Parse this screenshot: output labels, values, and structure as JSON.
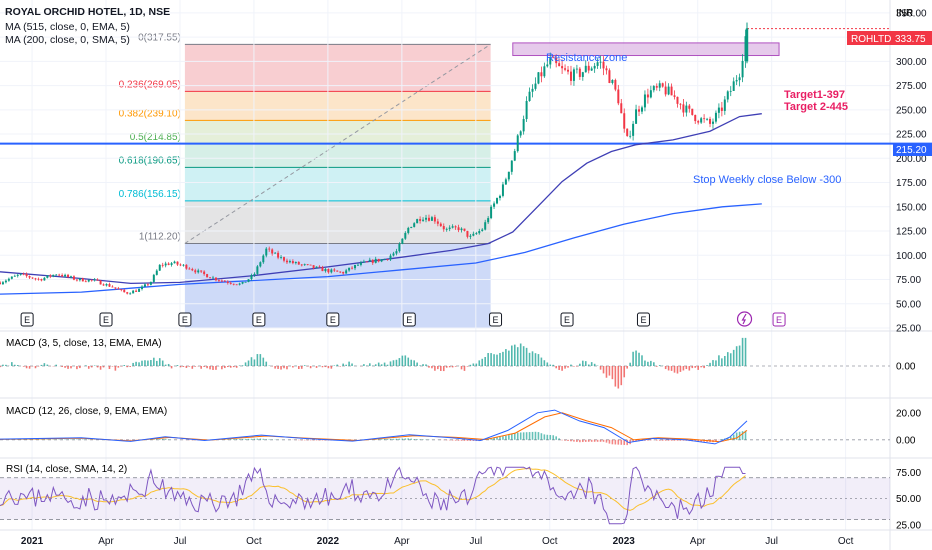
{
  "header": {
    "title": "ROYAL ORCHID HOTEL, 1D, NSE",
    "ma1": "MA (515, close, 0, EMA, 5)",
    "ma2": "MA (200, close, 0, SMA, 5)",
    "currency": "INR"
  },
  "price_tag": {
    "symbol": "ROHLTD",
    "value": "333.75",
    "color": "#f23645"
  },
  "hline_tag": {
    "value": "215.20",
    "color": "#2962ff"
  },
  "annotations": {
    "resistance": "Resistance zone",
    "target1": "Target1-397",
    "target2": "Target 2-445",
    "stop": "Stop Weekly close Below -300"
  },
  "panels": {
    "macd_fast": "MACD (3, 5, close, 13, EMA, EMA)",
    "macd_slow": "MACD (12, 26, close, 9, EMA, EMA)",
    "rsi": "RSI (14, close, SMA, 14, 2)"
  },
  "earnings_marker": "E",
  "chart_data": {
    "type": "candlestick",
    "main_y_ticks": [
      25,
      50,
      75,
      100,
      125,
      150,
      175,
      200,
      225,
      250,
      275,
      300,
      325,
      350
    ],
    "main_ylim": [
      25,
      355
    ],
    "x_labels": [
      "2021",
      "Apr",
      "Jul",
      "Oct",
      "2022",
      "Apr",
      "Jul",
      "Oct",
      "2023",
      "Apr",
      "Jul",
      "Oct"
    ],
    "x_label_months": [
      0,
      3,
      6,
      9,
      12,
      15,
      18,
      21,
      24,
      27,
      30,
      33
    ],
    "x_range_months": [
      -1.3,
      34.8
    ],
    "fibonacci": {
      "start_month": 6.2,
      "end_month": 18.6,
      "levels": [
        {
          "label": "0(317.55)",
          "ratio": 0,
          "price": 317.55,
          "line": "#787b86",
          "fill": "#f7c6c9",
          "text": "#787b86"
        },
        {
          "label": "0.236(269.05)",
          "ratio": 0.236,
          "price": 269.05,
          "line": "#f23645",
          "fill": "#fbe0c0",
          "text": "#f23645"
        },
        {
          "label": "0.382(239.10)",
          "ratio": 0.382,
          "price": 239.1,
          "line": "#ff9800",
          "fill": "#e0ecd2",
          "text": "#ff9800"
        },
        {
          "label": "0.5(214.85)",
          "ratio": 0.5,
          "price": 214.85,
          "line": "#4caf50",
          "fill": "#cfece3",
          "text": "#4caf50"
        },
        {
          "label": "0.618(190.65)",
          "ratio": 0.618,
          "price": 190.65,
          "line": "#089981",
          "fill": "#c7eff2",
          "text": "#089981"
        },
        {
          "label": "0.786(156.15)",
          "ratio": 0.786,
          "price": 156.15,
          "line": "#00bcd4",
          "fill": "#dfdfe1",
          "text": "#00bcd4"
        },
        {
          "label": "1(112.20)",
          "ratio": 1,
          "price": 112.2,
          "line": "#787b86",
          "fill": "#c6d3f7",
          "text": "#787b86"
        }
      ]
    },
    "resistance_zone": {
      "start_month": 19.5,
      "end_month": 30.3,
      "low": 306,
      "high": 319
    },
    "support_line": 215.2,
    "last_price": 333.75,
    "price_path": [
      [
        -1.3,
        72
      ],
      [
        -0.5,
        80
      ],
      [
        0.3,
        75
      ],
      [
        1.0,
        81
      ],
      [
        1.8,
        75
      ],
      [
        2.5,
        74
      ],
      [
        3.2,
        68
      ],
      [
        3.8,
        61
      ],
      [
        4.3,
        64
      ],
      [
        4.8,
        72
      ],
      [
        5.2,
        90
      ],
      [
        5.7,
        92
      ],
      [
        6.3,
        88
      ],
      [
        6.8,
        82
      ],
      [
        7.4,
        76
      ],
      [
        8.0,
        72
      ],
      [
        8.5,
        70
      ],
      [
        9.0,
        80
      ],
      [
        9.5,
        106
      ],
      [
        10.0,
        98
      ],
      [
        10.6,
        92
      ],
      [
        11.3,
        88
      ],
      [
        12.0,
        84
      ],
      [
        12.6,
        82
      ],
      [
        13.2,
        90
      ],
      [
        13.8,
        94
      ],
      [
        14.3,
        96
      ],
      [
        14.8,
        104
      ],
      [
        15.3,
        130
      ],
      [
        15.8,
        140
      ],
      [
        16.3,
        138
      ],
      [
        16.8,
        126
      ],
      [
        17.3,
        128
      ],
      [
        17.8,
        118
      ],
      [
        18.3,
        128
      ],
      [
        18.6,
        146
      ],
      [
        19.1,
        170
      ],
      [
        19.6,
        210
      ],
      [
        20.1,
        260
      ],
      [
        20.6,
        285
      ],
      [
        21.0,
        300
      ],
      [
        21.5,
        290
      ],
      [
        22.0,
        285
      ],
      [
        22.5,
        292
      ],
      [
        23.0,
        300
      ],
      [
        23.4,
        285
      ],
      [
        23.8,
        260
      ],
      [
        24.1,
        215
      ],
      [
        24.5,
        248
      ],
      [
        25.0,
        268
      ],
      [
        25.6,
        272
      ],
      [
        26.1,
        262
      ],
      [
        26.6,
        248
      ],
      [
        27.1,
        240
      ],
      [
        27.5,
        235
      ],
      [
        27.9,
        248
      ],
      [
        28.3,
        268
      ],
      [
        28.7,
        290
      ],
      [
        29.0,
        334
      ]
    ],
    "ma200_path": [
      [
        -1.3,
        60
      ],
      [
        2.0,
        62
      ],
      [
        4.0,
        66
      ],
      [
        6.0,
        70
      ],
      [
        9.0,
        74
      ],
      [
        12.0,
        78
      ],
      [
        15.0,
        85
      ],
      [
        18.0,
        92
      ],
      [
        20.0,
        103
      ],
      [
        22.0,
        118
      ],
      [
        24.0,
        132
      ],
      [
        26.0,
        143
      ],
      [
        28.0,
        150
      ],
      [
        29.6,
        153
      ]
    ],
    "ma515_path": [
      [
        -1.3,
        83
      ],
      [
        2.0,
        76
      ],
      [
        4.0,
        71
      ],
      [
        6.0,
        72
      ],
      [
        9.0,
        79
      ],
      [
        12.0,
        88
      ],
      [
        15.0,
        98
      ],
      [
        17.0,
        105
      ],
      [
        18.5,
        112
      ],
      [
        19.5,
        124
      ],
      [
        20.5,
        150
      ],
      [
        21.5,
        176
      ],
      [
        22.5,
        195
      ],
      [
        23.5,
        207
      ],
      [
        24.5,
        214
      ],
      [
        26.0,
        219
      ],
      [
        27.5,
        228
      ],
      [
        28.7,
        243
      ],
      [
        29.6,
        246
      ]
    ],
    "earnings_months": [
      -0.2,
      3.0,
      6.2,
      9.2,
      12.2,
      15.3,
      18.8,
      21.7,
      24.8
    ],
    "macd_fast": {
      "y_ticks": [
        0.0
      ],
      "ylim": [
        -8,
        8
      ]
    },
    "macd_slow": {
      "y_ticks": [
        20.0,
        0.0
      ],
      "ylim": [
        -12,
        28
      ],
      "macd_path": [
        [
          -1.3,
          0.5
        ],
        [
          2.0,
          1.5
        ],
        [
          4.0,
          -1.2
        ],
        [
          5.4,
          2.2
        ],
        [
          7.0,
          -0.5
        ],
        [
          9.3,
          3.5
        ],
        [
          11.0,
          1.0
        ],
        [
          13.0,
          -1.0
        ],
        [
          15.3,
          3.8
        ],
        [
          17.0,
          1.5
        ],
        [
          18.2,
          -0.5
        ],
        [
          19.3,
          7
        ],
        [
          20.5,
          20
        ],
        [
          21.2,
          22
        ],
        [
          22.2,
          14
        ],
        [
          23.2,
          9
        ],
        [
          24.2,
          -2
        ],
        [
          25.2,
          1
        ],
        [
          26.5,
          0
        ],
        [
          27.7,
          -3
        ],
        [
          28.3,
          2
        ],
        [
          29.0,
          14
        ]
      ],
      "signal_path": [
        [
          -1.3,
          0.3
        ],
        [
          2.0,
          1.2
        ],
        [
          4.0,
          -0.8
        ],
        [
          5.6,
          1.8
        ],
        [
          7.2,
          -0.2
        ],
        [
          9.5,
          2.8
        ],
        [
          11.2,
          1.2
        ],
        [
          13.2,
          -0.5
        ],
        [
          15.5,
          3.0
        ],
        [
          17.2,
          1.8
        ],
        [
          18.4,
          0.2
        ],
        [
          19.6,
          5
        ],
        [
          20.8,
          17
        ],
        [
          21.5,
          20
        ],
        [
          22.5,
          14
        ],
        [
          23.5,
          9
        ],
        [
          24.4,
          0
        ],
        [
          25.4,
          1.5
        ],
        [
          26.7,
          0.5
        ],
        [
          27.9,
          -1.5
        ],
        [
          28.6,
          1.5
        ],
        [
          29.0,
          7
        ]
      ]
    },
    "rsi": {
      "y_ticks": [
        75.0,
        50.0,
        25.0
      ],
      "bands": [
        70,
        30
      ],
      "ylim": [
        22,
        85
      ]
    }
  }
}
